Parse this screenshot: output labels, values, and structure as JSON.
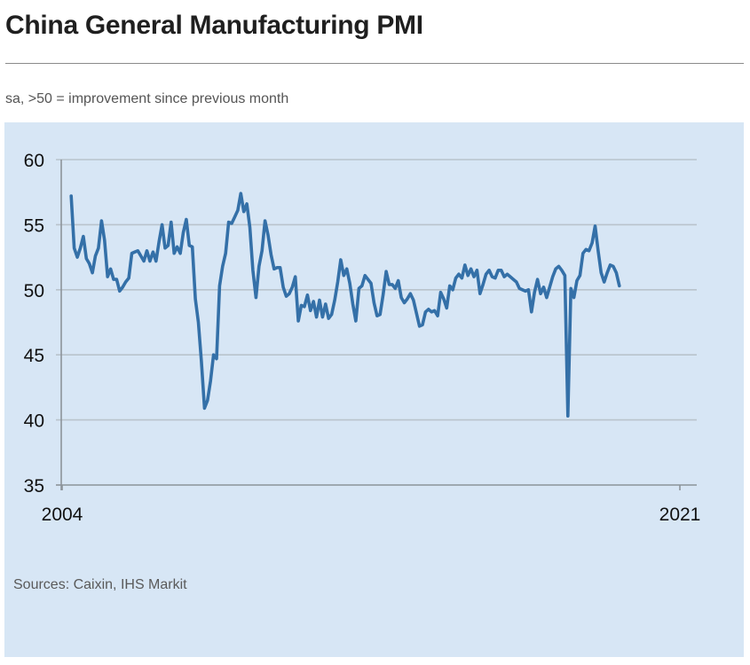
{
  "header": {
    "title": "China General Manufacturing PMI",
    "subtitle": "sa, >50 = improvement since previous month"
  },
  "footer": {
    "sources": "Sources: Caixin, IHS Markit"
  },
  "colors": {
    "panel_background": "#d7e6f5",
    "series_line": "#3470a8",
    "gridline": "#b9c3cc",
    "axis": "#8c9399"
  },
  "chart_data": {
    "type": "line",
    "title": "China General Manufacturing PMI",
    "subtitle": "sa, >50 = improvement since previous month",
    "xlabel": "",
    "ylabel": "",
    "ylim": [
      35,
      60
    ],
    "yticks": [
      35,
      40,
      45,
      50,
      55,
      60
    ],
    "ytick_labels": [
      "35",
      "40",
      "45",
      "50",
      "55",
      "60"
    ],
    "xlim": [
      "2004-01",
      "2021-07"
    ],
    "xticks": [
      "2004-01",
      "2021-01"
    ],
    "xtick_labels": [
      "2004",
      "2021"
    ],
    "grid": true,
    "legend": "none",
    "series": [
      {
        "name": "China General Manufacturing PMI",
        "frequency": "monthly",
        "start": "2004-04",
        "values": [
          57.2,
          53.2,
          52.5,
          53.2,
          54.1,
          52.4,
          52.0,
          51.3,
          52.6,
          53.2,
          55.3,
          53.8,
          51.0,
          51.6,
          50.8,
          50.8,
          49.9,
          50.2,
          50.6,
          50.9,
          52.8,
          52.9,
          53.0,
          52.6,
          52.2,
          53.0,
          52.2,
          52.9,
          52.2,
          53.7,
          55.0,
          53.2,
          53.4,
          55.2,
          52.8,
          53.3,
          52.8,
          54.4,
          55.4,
          53.4,
          53.3,
          49.3,
          47.5,
          44.5,
          40.9,
          41.5,
          43.0,
          45.0,
          44.7,
          50.3,
          51.8,
          52.8,
          55.2,
          55.1,
          55.6,
          56.1,
          57.4,
          56.0,
          56.6,
          54.8,
          51.5,
          49.4,
          51.8,
          53.0,
          55.3,
          54.2,
          52.7,
          51.6,
          51.7,
          51.7,
          50.2,
          49.5,
          49.7,
          50.2,
          51.0,
          47.6,
          48.8,
          48.7,
          49.6,
          48.4,
          49.1,
          47.9,
          49.2,
          47.9,
          48.9,
          47.8,
          48.1,
          49.2,
          50.6,
          52.3,
          51.1,
          51.6,
          50.5,
          48.9,
          47.6,
          50.1,
          50.3,
          51.1,
          50.8,
          50.5,
          49.0,
          48.0,
          48.1,
          49.6,
          51.4,
          50.4,
          50.4,
          50.1,
          50.7,
          49.4,
          49.0,
          49.3,
          49.7,
          49.2,
          48.2,
          47.2,
          47.3,
          48.3,
          48.5,
          48.3,
          48.4,
          48.0,
          49.8,
          49.3,
          48.6,
          50.3,
          50.0,
          50.9,
          51.2,
          50.9,
          51.9,
          51.1,
          51.6,
          51.0,
          51.5,
          49.7,
          50.4,
          51.2,
          51.5,
          51.0,
          50.9,
          51.5,
          51.5,
          51.0,
          51.2,
          51.0,
          50.8,
          50.6,
          50.1,
          50.0,
          49.9,
          50.0,
          48.3,
          49.8,
          50.8,
          49.7,
          50.2,
          49.4,
          50.2,
          51.0,
          51.6,
          51.8,
          51.5,
          51.1,
          40.3,
          50.1,
          49.4,
          50.7,
          51.1,
          52.8,
          53.1,
          53.0,
          53.6,
          54.9,
          53.0,
          51.3,
          50.6,
          51.3,
          51.9,
          51.8,
          51.3,
          50.3
        ]
      }
    ]
  }
}
